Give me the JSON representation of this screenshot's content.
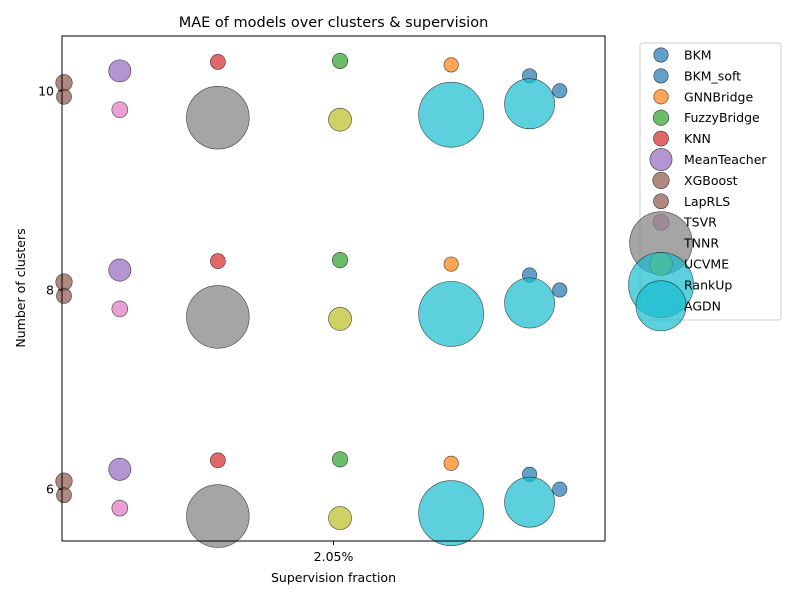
{
  "chart_data": {
    "type": "scatter",
    "title": "MAE of models over clusters & supervision",
    "xlabel": "Supervision fraction",
    "ylabel": "Number of clusters",
    "x_tick_labels": [
      "2.05%"
    ],
    "y_ticks": [
      6,
      8,
      10
    ],
    "xlim": [
      -0.54,
      0.54
    ],
    "ylim": [
      5.48,
      10.55
    ],
    "legend_position": "upper-right-outside",
    "series": [
      {
        "name": "BKM",
        "color": "#1f77b4",
        "mae": 0.25,
        "points": [
          {
            "x": 0.39,
            "y": 10.15
          },
          {
            "x": 0.39,
            "y": 8.15
          },
          {
            "x": 0.39,
            "y": 6.15
          }
        ]
      },
      {
        "name": "BKM_soft",
        "color": "#1f77b4",
        "mae": 0.25,
        "points": [
          {
            "x": 0.45,
            "y": 10.0
          },
          {
            "x": 0.45,
            "y": 8.0
          },
          {
            "x": 0.45,
            "y": 6.0
          }
        ]
      },
      {
        "name": "GNNBridge",
        "color": "#ff7f0e",
        "mae": 0.25,
        "points": [
          {
            "x": 0.234,
            "y": 10.26
          },
          {
            "x": 0.234,
            "y": 8.26
          },
          {
            "x": 0.234,
            "y": 6.26
          }
        ]
      },
      {
        "name": "FuzzyBridge",
        "color": "#2ca02c",
        "mae": 0.3,
        "points": [
          {
            "x": 0.013,
            "y": 10.3
          },
          {
            "x": 0.013,
            "y": 8.3
          },
          {
            "x": 0.013,
            "y": 6.3
          }
        ]
      },
      {
        "name": "KNN",
        "color": "#d62728",
        "mae": 0.28,
        "points": [
          {
            "x": -0.23,
            "y": 10.29
          },
          {
            "x": -0.23,
            "y": 8.29
          },
          {
            "x": -0.23,
            "y": 6.29
          }
        ]
      },
      {
        "name": "MeanTeacher",
        "color": "#9467bd",
        "mae": 0.62,
        "points": [
          {
            "x": -0.425,
            "y": 10.2
          },
          {
            "x": -0.425,
            "y": 8.2
          },
          {
            "x": -0.425,
            "y": 6.2
          }
        ]
      },
      {
        "name": "XGBoost",
        "color": "#8c564b",
        "mae": 0.35,
        "points": [
          {
            "x": -0.536,
            "y": 10.08
          },
          {
            "x": -0.536,
            "y": 8.08
          },
          {
            "x": -0.536,
            "y": 6.08
          }
        ]
      },
      {
        "name": "LapRLS",
        "color": "#8c564b",
        "mae": 0.28,
        "points": [
          {
            "x": -0.536,
            "y": 9.94
          },
          {
            "x": -0.536,
            "y": 7.94
          },
          {
            "x": -0.536,
            "y": 5.94
          }
        ]
      },
      {
        "name": "TSVR",
        "color": "#e377c2",
        "mae": 0.32,
        "points": [
          {
            "x": -0.425,
            "y": 9.81
          },
          {
            "x": -0.425,
            "y": 7.81
          },
          {
            "x": -0.425,
            "y": 5.81
          }
        ]
      },
      {
        "name": "TNNR",
        "color": "#7f7f7f",
        "mae": 2.55,
        "points": [
          {
            "x": -0.23,
            "y": 9.73
          },
          {
            "x": -0.23,
            "y": 7.73
          },
          {
            "x": -0.23,
            "y": 5.73
          }
        ]
      },
      {
        "name": "UCVME",
        "color": "#bcbd22",
        "mae": 0.66,
        "points": [
          {
            "x": 0.013,
            "y": 9.71
          },
          {
            "x": 0.013,
            "y": 7.71
          },
          {
            "x": 0.013,
            "y": 5.71
          }
        ]
      },
      {
        "name": "RankUp",
        "color": "#17becf",
        "mae": 2.66,
        "points": [
          {
            "x": 0.234,
            "y": 9.76
          },
          {
            "x": 0.234,
            "y": 7.76
          },
          {
            "x": 0.234,
            "y": 5.76
          }
        ]
      },
      {
        "name": "AGDN",
        "color": "#17becf",
        "mae": 1.95,
        "points": [
          {
            "x": 0.39,
            "y": 9.87
          },
          {
            "x": 0.39,
            "y": 7.87
          },
          {
            "x": 0.39,
            "y": 5.87
          }
        ]
      }
    ]
  }
}
